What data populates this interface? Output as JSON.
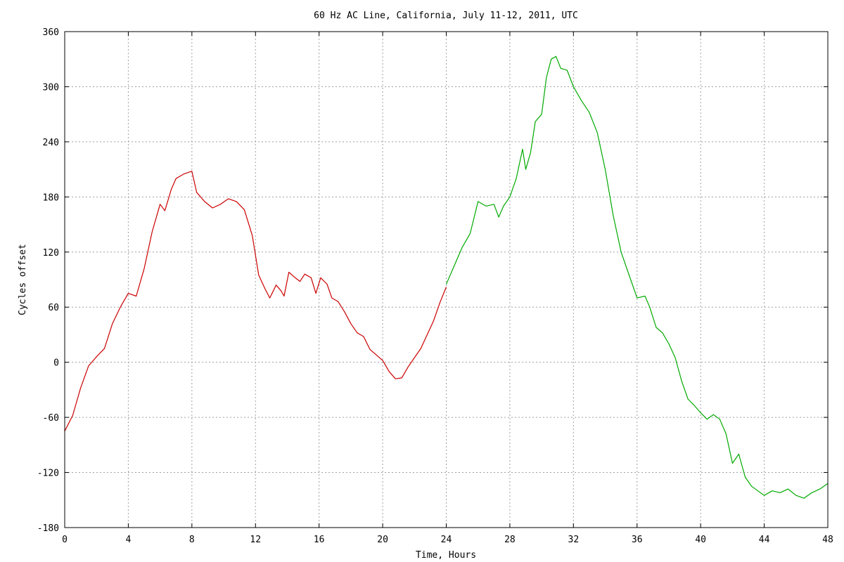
{
  "chart_data": {
    "type": "line",
    "title": "60 Hz AC Line, California, July 11-12, 2011, UTC",
    "xlabel": "Time, Hours",
    "ylabel": "Cycles offset",
    "xlim": [
      0,
      48
    ],
    "ylim": [
      -180,
      360
    ],
    "xticks": [
      "0",
      "4",
      "8",
      "12",
      "16",
      "20",
      "24",
      "28",
      "32",
      "36",
      "40",
      "44",
      "48"
    ],
    "yticks": [
      "360",
      "300",
      "240",
      "180",
      "120",
      "60",
      "0",
      "-60",
      "-120",
      "-180"
    ],
    "grid": true,
    "series": [
      {
        "color": "#cc0000",
        "x": [
          0,
          0.5,
          1,
          1.5,
          2,
          2.5,
          3,
          3.5,
          4,
          4.5,
          5,
          5.5,
          6,
          6.3,
          6.7,
          7,
          7.5,
          8,
          8.3,
          8.8,
          9.3,
          9.8,
          10.3,
          10.8,
          11.3,
          11.8,
          12.2,
          12.6,
          12.9,
          13.3,
          13.6,
          13.8,
          14.1,
          14.5,
          14.8,
          15.1,
          15.5,
          15.8,
          16.1,
          16.5,
          16.8,
          17.2,
          17.6,
          18.0,
          18.4,
          18.8,
          19.2,
          19.6,
          20.0,
          20.4,
          20.8,
          21.2,
          21.6,
          22.0,
          22.4,
          22.8,
          23.2,
          23.6,
          24.0
        ],
        "y": [
          -75,
          -58,
          -28,
          -4,
          6,
          15,
          42,
          60,
          75,
          72,
          102,
          142,
          172,
          165,
          188,
          200,
          205,
          208,
          185,
          175,
          168,
          172,
          178,
          175,
          166,
          138,
          95,
          80,
          70,
          84,
          78,
          72,
          98,
          92,
          88,
          96,
          92,
          75,
          92,
          85,
          70,
          66,
          55,
          42,
          32,
          28,
          14,
          8,
          2,
          -10,
          -18,
          -17,
          -5,
          5,
          15,
          30,
          45,
          65,
          82
        ]
      },
      {
        "color": "#00aa00",
        "x": [
          24.0,
          24.5,
          25.0,
          25.5,
          26.0,
          26.5,
          27.0,
          27.3,
          27.6,
          28.0,
          28.4,
          28.8,
          29.0,
          29.3,
          29.6,
          30.0,
          30.3,
          30.6,
          30.9,
          31.2,
          31.6,
          32.0,
          32.5,
          33.0,
          33.5,
          34.0,
          34.5,
          35.0,
          35.5,
          36.0,
          36.5,
          36.8,
          37.2,
          37.6,
          38.0,
          38.4,
          38.8,
          39.2,
          39.6,
          40.0,
          40.4,
          40.8,
          41.2,
          41.6,
          42.0,
          42.4,
          42.8,
          43.2,
          43.6,
          44.0,
          44.5,
          45.0,
          45.5,
          46.0,
          46.5,
          47.0,
          47.5,
          48.0
        ],
        "y": [
          85,
          105,
          125,
          140,
          175,
          170,
          172,
          158,
          170,
          180,
          200,
          232,
          210,
          228,
          262,
          270,
          310,
          330,
          333,
          320,
          318,
          300,
          285,
          272,
          250,
          210,
          160,
          120,
          95,
          70,
          72,
          60,
          38,
          32,
          20,
          5,
          -20,
          -40,
          -47,
          -55,
          -62,
          -57,
          -62,
          -78,
          -110,
          -100,
          -125,
          -135,
          -140,
          -145,
          -140,
          -142,
          -138,
          -145,
          -148,
          -142,
          -138,
          -132
        ]
      }
    ]
  }
}
